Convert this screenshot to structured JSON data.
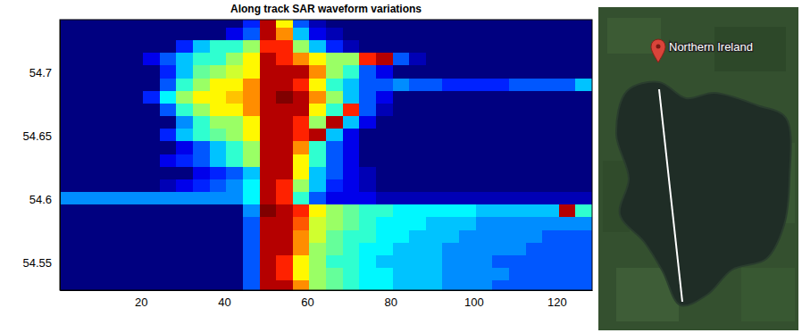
{
  "chart_data": {
    "type": "heatmap",
    "title": "Along track SAR waveform variations",
    "xlim": [
      0.5,
      128.5
    ],
    "ylim": [
      54.528,
      54.742
    ],
    "xticks": [
      20,
      40,
      60,
      80,
      100,
      120
    ],
    "yticks": [
      54.55,
      54.6,
      54.65,
      54.7
    ],
    "x_edges": [
      0.5,
      4.5,
      8.5,
      12.5,
      16.5,
      20.5,
      24.5,
      28.5,
      32.5,
      36.5,
      40.5,
      44.5,
      48.5,
      52.5,
      56.5,
      60.5,
      64.5,
      68.5,
      72.5,
      76.5,
      80.5,
      84.5,
      88.5,
      92.5,
      96.5,
      100.5,
      104.5,
      108.5,
      112.5,
      116.5,
      120.5,
      124.5,
      128.5
    ],
    "y_edges": [
      54.528,
      54.536,
      54.546,
      54.556,
      54.566,
      54.576,
      54.586,
      54.596,
      54.606,
      54.616,
      54.626,
      54.636,
      54.646,
      54.656,
      54.666,
      54.676,
      54.686,
      54.696,
      54.706,
      54.716,
      54.726,
      54.736,
      54.742
    ],
    "cells": [
      [
        0,
        0,
        0,
        0,
        0,
        0,
        0,
        0,
        0,
        0,
        0,
        2,
        9,
        9,
        7,
        5,
        4.5,
        4,
        3.5,
        3.5,
        3,
        3,
        3,
        2.5,
        2.5,
        2.5,
        2,
        2,
        2,
        2,
        2,
        2
      ],
      [
        0,
        0,
        0,
        0,
        0,
        0,
        0,
        0,
        0,
        0,
        0,
        2,
        9,
        8,
        6,
        5,
        4.5,
        4,
        3.5,
        3.5,
        3,
        3,
        3,
        2.5,
        2.5,
        2.5,
        2.5,
        2,
        2,
        2,
        2,
        2
      ],
      [
        0,
        0,
        0,
        0,
        0,
        0,
        0,
        0,
        0,
        0,
        0,
        2,
        9,
        8,
        6,
        5,
        4,
        4,
        3.5,
        3,
        3,
        3,
        3,
        2.5,
        2.5,
        2.5,
        2,
        2,
        2,
        2,
        2,
        2
      ],
      [
        0,
        0,
        0,
        0,
        0,
        0,
        0,
        0,
        0,
        0,
        0,
        2,
        9,
        9,
        7,
        5,
        4.5,
        4,
        3.5,
        3.5,
        3,
        3,
        3,
        2.5,
        2.5,
        2.5,
        2.5,
        2.5,
        2,
        2,
        2,
        2
      ],
      [
        0,
        0,
        0,
        0,
        0,
        0,
        0,
        0,
        0,
        0,
        0,
        2,
        9,
        9,
        7,
        5.5,
        4.5,
        4,
        4,
        3.5,
        3.5,
        3,
        3,
        3,
        2.5,
        2.5,
        2.5,
        2.5,
        2.5,
        2,
        2,
        2
      ],
      [
        0,
        0,
        0,
        0,
        0,
        0,
        0,
        0,
        0,
        0,
        0,
        2,
        9,
        9,
        7.5,
        5.5,
        5,
        4.5,
        4,
        3.5,
        3.5,
        3.5,
        3,
        3,
        3,
        2.5,
        2.5,
        2.5,
        2.5,
        2.5,
        2.5,
        2.5
      ],
      [
        0,
        0,
        0,
        0,
        0,
        0,
        0,
        0,
        0,
        0,
        0,
        2.5,
        9.5,
        9,
        8,
        6,
        5,
        4.5,
        4,
        4,
        3.5,
        3.5,
        3.5,
        3.5,
        3.5,
        3,
        3,
        3,
        3,
        3,
        9,
        4
      ],
      [
        2.5,
        2.5,
        2.5,
        2.5,
        2.5,
        2.5,
        2.5,
        2.5,
        2.5,
        2.5,
        2.5,
        3.5,
        9,
        8,
        4,
        2,
        1,
        1,
        1,
        0.5,
        0.5,
        0.5,
        0.5,
        0.5,
        0.5,
        0.5,
        0.5,
        0.5,
        0.5,
        0.5,
        0.5,
        0.5
      ],
      [
        0,
        0,
        0,
        0,
        0,
        0,
        0.5,
        1,
        1.5,
        2,
        2.5,
        3.5,
        9,
        8,
        5,
        3,
        1.5,
        1,
        0.5,
        0,
        0,
        0,
        0,
        0,
        0,
        0,
        0,
        0,
        0,
        0,
        0,
        0
      ],
      [
        0,
        0,
        0,
        0,
        0,
        0,
        0,
        0,
        1,
        1.5,
        2,
        3,
        9,
        9,
        6,
        3,
        2,
        1,
        0.5,
        0,
        0,
        0,
        0,
        0,
        0,
        0,
        0,
        0,
        0,
        0,
        0,
        0
      ],
      [
        0,
        0,
        0,
        0,
        0,
        0,
        1,
        1.5,
        2,
        3,
        4,
        5,
        9,
        9,
        6,
        4,
        2,
        1,
        0,
        0,
        0,
        0,
        0,
        0,
        0,
        0,
        0,
        0,
        0,
        0,
        0,
        0
      ],
      [
        0,
        0,
        0,
        0,
        0,
        0,
        0,
        1,
        2,
        3,
        4,
        5,
        9,
        9,
        7,
        4,
        2,
        1,
        0,
        0,
        0,
        0,
        0,
        0,
        0,
        0,
        0,
        0,
        0,
        0,
        0,
        0
      ],
      [
        0,
        0,
        0,
        0,
        0,
        0,
        1.5,
        3,
        4,
        4.5,
        5,
        6,
        9,
        9,
        8,
        9,
        3,
        1,
        0,
        0,
        0,
        0,
        0,
        0,
        0,
        0,
        0,
        0,
        0,
        0,
        0,
        0
      ],
      [
        0,
        0,
        0,
        0,
        0,
        0,
        0,
        2.5,
        4,
        5,
        5,
        6,
        9,
        9,
        8,
        5,
        9,
        3,
        1,
        0,
        0,
        0,
        0,
        0,
        0,
        0,
        0,
        0,
        0,
        0,
        0,
        0
      ],
      [
        0,
        0,
        0,
        0,
        0,
        0,
        2,
        4,
        5,
        6,
        6,
        7,
        9,
        9,
        9,
        6,
        4,
        8,
        2,
        0.5,
        0,
        0,
        0,
        0,
        0,
        0,
        0,
        0,
        0,
        0,
        0,
        0
      ],
      [
        0,
        0,
        0,
        0,
        0,
        1.5,
        3.5,
        5,
        6,
        6,
        6.5,
        7,
        9,
        9.5,
        9,
        7,
        5,
        3,
        2,
        1,
        0,
        0,
        0,
        0,
        0,
        0,
        0,
        0,
        0,
        0,
        0,
        0
      ],
      [
        0,
        0,
        0,
        0,
        0,
        0,
        2,
        4,
        5,
        6,
        6,
        7,
        9,
        9,
        8,
        6,
        4,
        3,
        2,
        2,
        2.5,
        2,
        2,
        1.5,
        1.5,
        1.5,
        1.5,
        2,
        2,
        2,
        2,
        3
      ],
      [
        0,
        0,
        0,
        0,
        0,
        0,
        1.5,
        3,
        4.5,
        5,
        5.5,
        6,
        9,
        9,
        9,
        7,
        5,
        4,
        2,
        1,
        0,
        0,
        0,
        0,
        0,
        0,
        0,
        0,
        0,
        0,
        0,
        0
      ],
      [
        0,
        0,
        0,
        0,
        0,
        1,
        2,
        3,
        4,
        4,
        5,
        6,
        9,
        8,
        7,
        6,
        5,
        5,
        8,
        9,
        2,
        0.5,
        0,
        0,
        0,
        0,
        0,
        0,
        0,
        0,
        0,
        0
      ],
      [
        0,
        0,
        0,
        0,
        0,
        0,
        0,
        1.5,
        3,
        4,
        4,
        5,
        8,
        8,
        5,
        3,
        1.5,
        0.5,
        0,
        0,
        0,
        0,
        0,
        0,
        0,
        0,
        0,
        0,
        0,
        0,
        0,
        0
      ],
      [
        0,
        0,
        0,
        0,
        0,
        0,
        0,
        0,
        0,
        0,
        1,
        2,
        9,
        7,
        3,
        1,
        0.5,
        0,
        0,
        0,
        0,
        0,
        0,
        0,
        0,
        0,
        0,
        0,
        0,
        0,
        0,
        0
      ],
      [
        0,
        0,
        0,
        0,
        0,
        0,
        0,
        0,
        0,
        0,
        0,
        1.5,
        9,
        6,
        2,
        0.5,
        0,
        0,
        0,
        0,
        0,
        0,
        0,
        0,
        0,
        0,
        0,
        0,
        0,
        0,
        0,
        0
      ]
    ]
  },
  "map": {
    "label": "Northern Ireland"
  }
}
